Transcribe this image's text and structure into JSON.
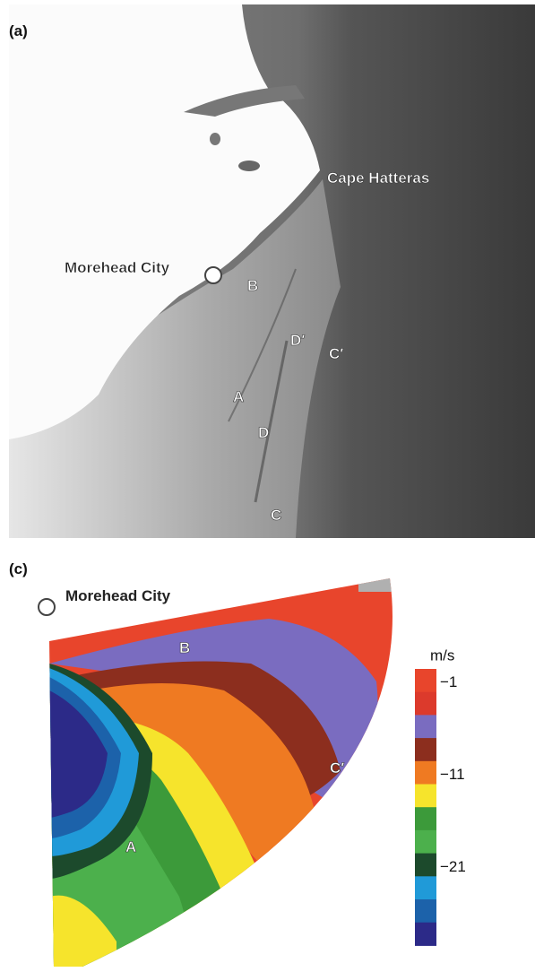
{
  "panels": [
    {
      "label": "(a)",
      "annotations": [
        "Cape Hatteras",
        "Morehead City",
        "B",
        "D′",
        "C′",
        "A",
        "D",
        "C"
      ]
    },
    {
      "label": "(c)",
      "annotations": [
        "Morehead City",
        "B",
        "C′",
        "A"
      ]
    }
  ],
  "colorbar": {
    "unit": "m/s",
    "ticks": [
      "−1",
      "−11",
      "−21"
    ],
    "colors": [
      "#e8452c",
      "#dc3a2c",
      "#7a6cc0",
      "#8c2e1e",
      "#ef7a22",
      "#f6e42c",
      "#3c9a3a",
      "#4cb04c",
      "#1c4a2c",
      "#209ad8",
      "#1c62aa",
      "#2c2a88"
    ]
  }
}
